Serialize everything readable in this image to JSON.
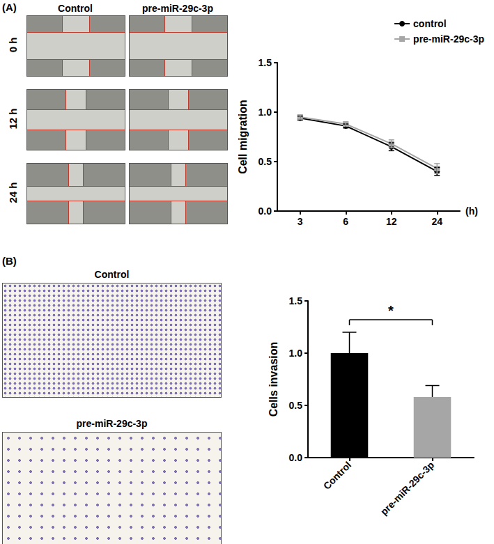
{
  "figure": {
    "panel_a": {
      "label": "(A)",
      "column_titles": [
        "Control",
        "pre-miR-29c-3p"
      ],
      "row_titles": [
        "0 h",
        "12 h",
        "24 h"
      ]
    },
    "panel_b": {
      "label": "(B)",
      "image_titles": [
        "Control",
        "pre-miR-29c-3p"
      ]
    }
  },
  "chart_data": [
    {
      "type": "line",
      "x_label": "(h)",
      "y_label": "Cell migration",
      "categories": [
        "3",
        "6",
        "12",
        "24"
      ],
      "series": [
        {
          "name": "control",
          "color": "#000000",
          "marker": "circle",
          "line_style": "solid",
          "values": [
            0.94,
            0.86,
            0.65,
            0.4
          ],
          "errors": [
            0.02,
            0.02,
            0.04,
            0.04
          ]
        },
        {
          "name": "pre-miR-29c-3p",
          "color": "#a6a6a6",
          "marker": "square",
          "line_style": "solid",
          "values": [
            0.95,
            0.88,
            0.68,
            0.43
          ],
          "errors": [
            0.02,
            0.02,
            0.04,
            0.05
          ]
        }
      ],
      "ylim": [
        0,
        1.5
      ],
      "yticks": [
        {
          "value": 0,
          "label": "0.0"
        },
        {
          "value": 0.5,
          "label": "0.5"
        },
        {
          "value": 1,
          "label": "1.0"
        },
        {
          "value": 1.5,
          "label": "1.5"
        }
      ],
      "grid": false,
      "legend": "top-right"
    },
    {
      "type": "bar",
      "y_label": "Cells invasion",
      "categories": [
        "Control",
        "pre-miR-29c-3p"
      ],
      "values": [
        1.0,
        0.58
      ],
      "errors": [
        0.2,
        0.11
      ],
      "colors": [
        "#000000",
        "#a6a6a6"
      ],
      "ylim": [
        0,
        1.5
      ],
      "yticks": [
        {
          "value": 0,
          "label": "0.0"
        },
        {
          "value": 0.5,
          "label": "0.5"
        },
        {
          "value": 1,
          "label": "1.0"
        },
        {
          "value": 1.5,
          "label": "1.5"
        }
      ],
      "grid": false,
      "annotations": [
        {
          "text": "*",
          "between": [
            "Control",
            "pre-miR-29c-3p"
          ]
        }
      ]
    }
  ]
}
